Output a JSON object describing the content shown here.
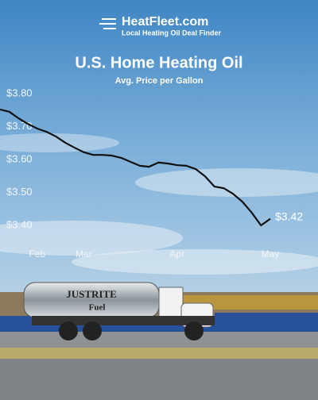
{
  "header": {
    "brand": "HeatFleet.com",
    "tagline": "Local Heating Oil Deal Finder"
  },
  "chart_data": {
    "type": "line",
    "title": "U.S. Home Heating Oil",
    "subtitle": "Avg. Price per Gallon",
    "categories": [
      null,
      null,
      null,
      null,
      "Feb",
      null,
      null,
      null,
      null,
      "Mar",
      null,
      null,
      null,
      null,
      null,
      null,
      null,
      null,
      null,
      "Apr",
      null,
      null,
      null,
      null,
      null,
      null,
      null,
      null,
      null,
      "May"
    ],
    "series": [
      {
        "color": "#111111",
        "values": [
          3.752,
          3.745,
          3.725,
          3.708,
          3.694,
          3.684,
          3.67,
          3.651,
          3.636,
          3.622,
          3.614,
          3.614,
          3.612,
          3.605,
          3.593,
          3.581,
          3.578,
          3.591,
          3.588,
          3.583,
          3.581,
          3.571,
          3.549,
          3.518,
          3.513,
          3.496,
          3.472,
          3.439,
          3.4,
          3.42
        ],
        "value_labels": [
          null,
          null,
          null,
          null,
          null,
          null,
          null,
          null,
          null,
          null,
          null,
          null,
          null,
          null,
          null,
          null,
          null,
          null,
          null,
          null,
          null,
          null,
          null,
          null,
          null,
          null,
          null,
          null,
          null,
          "$3.42"
        ]
      }
    ],
    "ylim": [
      3.38,
      3.84
    ],
    "yticks": [
      {
        "value": 3.4,
        "label": "$3.40"
      },
      {
        "value": 3.5,
        "label": "$3.50"
      },
      {
        "value": 3.6,
        "label": "$3.60"
      },
      {
        "value": 3.7,
        "label": "$3.70"
      },
      {
        "value": 3.8,
        "label": "$3.80"
      }
    ],
    "grid": false
  },
  "photo": {
    "tank_text": "JUSTRITE",
    "tank_subtext": "Fuel"
  }
}
